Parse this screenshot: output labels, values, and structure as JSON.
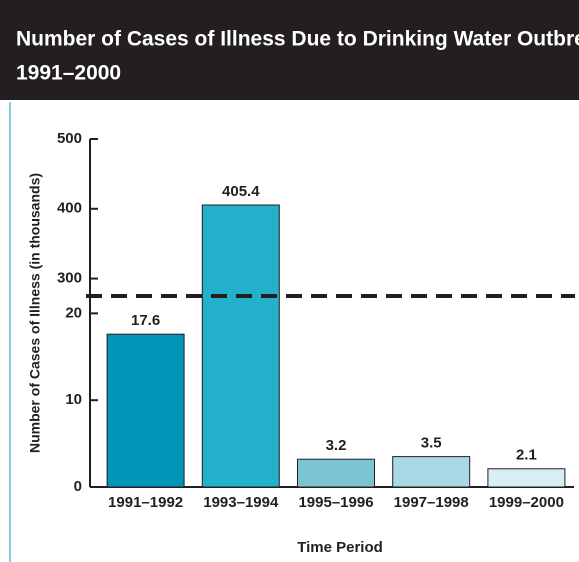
{
  "chart_data": {
    "type": "bar",
    "title": "Number of Cases of Illness Due to Drinking Water Outbreaks,",
    "subtitle": "1991–2000",
    "categories": [
      "1991–1992",
      "1993–1994",
      "1995–1996",
      "1997–1998",
      "1999–2000"
    ],
    "values": [
      17.6,
      405.4,
      3.2,
      3.5,
      2.1
    ],
    "colors": [
      "#0095b6",
      "#22b0cb",
      "#7cc3d4",
      "#a9d8e6",
      "#d7eef4"
    ],
    "ylim": [
      0,
      500
    ],
    "y_break": [
      22,
      275
    ],
    "yticks": [
      0,
      10,
      20,
      300,
      400,
      500
    ],
    "ylabel": "Number of Cases of Illness  (in thousands)",
    "xlabel": "Time Period"
  }
}
